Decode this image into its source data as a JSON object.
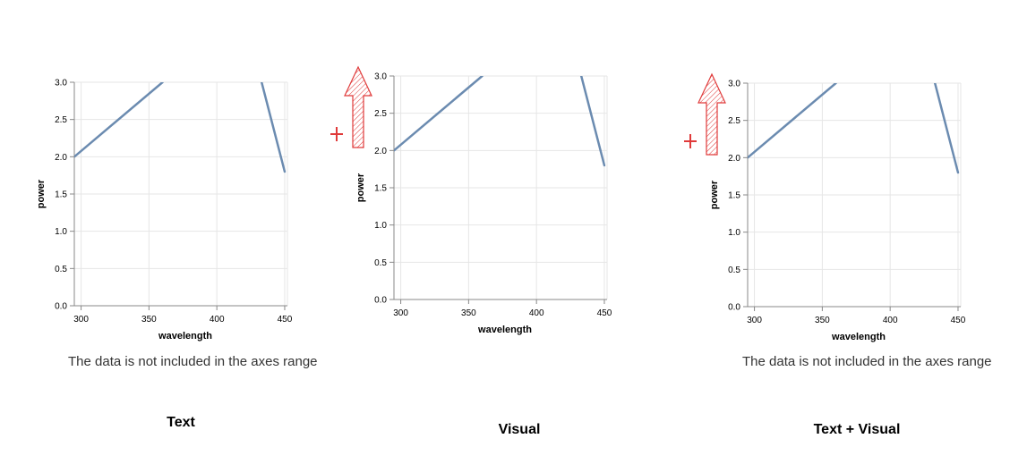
{
  "notice_text": "The data is not included in the axes range",
  "colors": {
    "line": "#6b8bb0",
    "grid": "#e6e6e6",
    "axis": "#888888",
    "annotation": "#e03a3a"
  },
  "chart_data": [
    {
      "type": "line",
      "xlabel": "wavelength",
      "ylabel": "power",
      "xlim": [
        295,
        452
      ],
      "ylim": [
        0,
        3
      ],
      "x_ticks": [
        300,
        350,
        400,
        450
      ],
      "y_ticks": [
        0,
        0.5,
        1,
        1.5,
        2,
        2.5,
        3
      ],
      "x_tick_labels": [
        "300",
        "350",
        "400",
        "450"
      ],
      "y_tick_labels": [
        "0.0",
        "0.5",
        "1.0",
        "1.5",
        "2.0",
        "2.5",
        "3.0"
      ],
      "grid": true,
      "series": [
        {
          "x": [
            295,
            360
          ],
          "y": [
            2.0,
            3.0
          ]
        },
        {
          "x": [
            433,
            450
          ],
          "y": [
            3.0,
            1.8
          ]
        }
      ],
      "annotation_text": "The data is not included in the axes range",
      "caption": "Text"
    },
    {
      "type": "line",
      "xlabel": "wavelength",
      "ylabel": "power",
      "xlim": [
        295,
        452
      ],
      "ylim": [
        0,
        3
      ],
      "x_ticks": [
        300,
        350,
        400,
        450
      ],
      "y_ticks": [
        0,
        0.5,
        1,
        1.5,
        2,
        2.5,
        3
      ],
      "x_tick_labels": [
        "300",
        "350",
        "400",
        "450"
      ],
      "y_tick_labels": [
        "0.0",
        "0.5",
        "1.0",
        "1.5",
        "2.0",
        "2.5",
        "3.0"
      ],
      "grid": true,
      "series": [
        {
          "x": [
            295,
            360
          ],
          "y": [
            2.0,
            3.0
          ]
        },
        {
          "x": [
            433,
            450
          ],
          "y": [
            3.0,
            1.8
          ]
        }
      ],
      "visual_marker": "out-of-range-up-arrow",
      "caption": "Visual"
    },
    {
      "type": "line",
      "xlabel": "wavelength",
      "ylabel": "power",
      "xlim": [
        295,
        452
      ],
      "ylim": [
        0,
        3
      ],
      "x_ticks": [
        300,
        350,
        400,
        450
      ],
      "y_ticks": [
        0,
        0.5,
        1,
        1.5,
        2,
        2.5,
        3
      ],
      "x_tick_labels": [
        "300",
        "350",
        "400",
        "450"
      ],
      "y_tick_labels": [
        "0.0",
        "0.5",
        "1.0",
        "1.5",
        "2.0",
        "2.5",
        "3.0"
      ],
      "grid": true,
      "series": [
        {
          "x": [
            295,
            360
          ],
          "y": [
            2.0,
            3.0
          ]
        },
        {
          "x": [
            433,
            450
          ],
          "y": [
            3.0,
            1.8
          ]
        }
      ],
      "visual_marker": "out-of-range-up-arrow",
      "annotation_text": "The data is not included in the axes range",
      "caption": "Text + Visual"
    }
  ]
}
